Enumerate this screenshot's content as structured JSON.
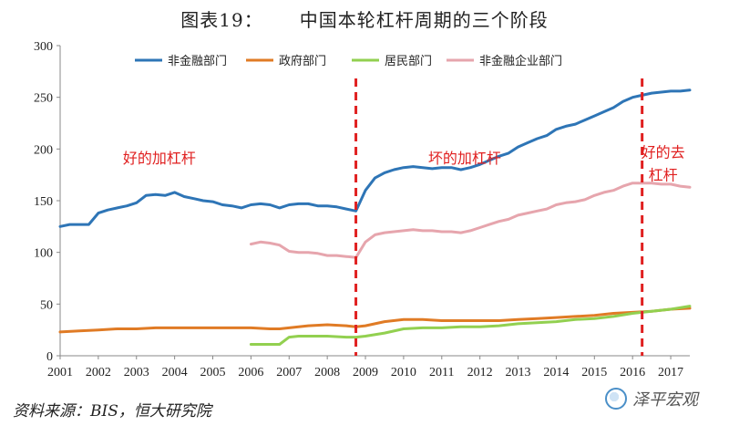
{
  "header": {
    "title_prefix": "图表19：",
    "title_main": "中国本轮杠杆周期的三个阶段"
  },
  "footer": {
    "source": "资料来源：BIS，恒大研究院",
    "watermark": "泽平宏观"
  },
  "chart_data": {
    "type": "line",
    "x_ticks": [
      "2001",
      "2002",
      "2003",
      "2004",
      "2005",
      "2006",
      "2007",
      "2008",
      "2009",
      "2010",
      "2011",
      "2012",
      "2013",
      "2014",
      "2015",
      "2016",
      "2017"
    ],
    "xlim": [
      2001,
      2017.5
    ],
    "ylim": [
      0,
      300
    ],
    "y_ticks": [
      "0",
      "50",
      "100",
      "150",
      "200",
      "250",
      "300"
    ],
    "legend_position": "top",
    "series": [
      {
        "name": "非金融部门",
        "color": "#2e75b6",
        "x": [
          2001.0,
          2001.25,
          2001.5,
          2001.75,
          2002.0,
          2002.25,
          2002.5,
          2002.75,
          2003.0,
          2003.25,
          2003.5,
          2003.75,
          2004.0,
          2004.25,
          2004.5,
          2004.75,
          2005.0,
          2005.25,
          2005.5,
          2005.75,
          2006.0,
          2006.25,
          2006.5,
          2006.75,
          2007.0,
          2007.25,
          2007.5,
          2007.75,
          2008.0,
          2008.25,
          2008.5,
          2008.75,
          2009.0,
          2009.25,
          2009.5,
          2009.75,
          2010.0,
          2010.25,
          2010.5,
          2010.75,
          2011.0,
          2011.25,
          2011.5,
          2011.75,
          2012.0,
          2012.25,
          2012.5,
          2012.75,
          2013.0,
          2013.25,
          2013.5,
          2013.75,
          2014.0,
          2014.25,
          2014.5,
          2014.75,
          2015.0,
          2015.25,
          2015.5,
          2015.75,
          2016.0,
          2016.25,
          2016.5,
          2016.75,
          2017.0,
          2017.25,
          2017.5
        ],
        "y": [
          125,
          127,
          127,
          127,
          138,
          141,
          143,
          145,
          148,
          155,
          156,
          155,
          158,
          154,
          152,
          150,
          149,
          146,
          145,
          143,
          146,
          147,
          146,
          143,
          146,
          147,
          147,
          145,
          145,
          144,
          142,
          140,
          160,
          172,
          177,
          180,
          182,
          183,
          182,
          181,
          182,
          182,
          180,
          182,
          185,
          189,
          193,
          196,
          202,
          206,
          210,
          213,
          219,
          222,
          224,
          228,
          232,
          236,
          240,
          246,
          250,
          252,
          254,
          255,
          256,
          256,
          257
        ]
      },
      {
        "name": "政府部门",
        "color": "#e07b25",
        "x": [
          2001.0,
          2001.5,
          2002.0,
          2002.5,
          2003.0,
          2003.5,
          2004.0,
          2004.5,
          2005.0,
          2005.5,
          2006.0,
          2006.5,
          2006.75,
          2007.0,
          2007.5,
          2008.0,
          2008.5,
          2008.75,
          2009.0,
          2009.5,
          2010.0,
          2010.5,
          2011.0,
          2011.5,
          2012.0,
          2012.5,
          2013.0,
          2013.5,
          2014.0,
          2014.5,
          2015.0,
          2015.5,
          2016.0,
          2016.5,
          2017.0,
          2017.5
        ],
        "y": [
          23,
          24,
          25,
          26,
          26,
          27,
          27,
          27,
          27,
          27,
          27,
          26,
          26,
          27,
          29,
          30,
          29,
          28,
          29,
          33,
          35,
          35,
          34,
          34,
          34,
          34,
          35,
          36,
          37,
          38,
          39,
          41,
          42,
          43,
          45,
          46
        ]
      },
      {
        "name": "居民部门",
        "color": "#92d050",
        "x": [
          2006.0,
          2006.25,
          2006.5,
          2006.75,
          2007.0,
          2007.25,
          2007.5,
          2008.0,
          2008.5,
          2008.75,
          2009.0,
          2009.5,
          2010.0,
          2010.5,
          2011.0,
          2011.5,
          2012.0,
          2012.5,
          2013.0,
          2013.5,
          2014.0,
          2014.5,
          2015.0,
          2015.5,
          2016.0,
          2016.5,
          2017.0,
          2017.5
        ],
        "y": [
          11,
          11,
          11,
          11,
          18,
          19,
          19,
          19,
          18,
          18,
          19,
          22,
          26,
          27,
          27,
          28,
          28,
          29,
          31,
          32,
          33,
          35,
          36,
          38,
          41,
          43,
          45,
          48
        ]
      },
      {
        "name": "非金融企业部门",
        "color": "#e6a5ad",
        "x": [
          2006.0,
          2006.25,
          2006.5,
          2006.75,
          2007.0,
          2007.25,
          2007.5,
          2007.75,
          2008.0,
          2008.25,
          2008.5,
          2008.75,
          2009.0,
          2009.25,
          2009.5,
          2009.75,
          2010.0,
          2010.25,
          2010.5,
          2010.75,
          2011.0,
          2011.25,
          2011.5,
          2011.75,
          2012.0,
          2012.25,
          2012.5,
          2012.75,
          2013.0,
          2013.25,
          2013.5,
          2013.75,
          2014.0,
          2014.25,
          2014.5,
          2014.75,
          2015.0,
          2015.25,
          2015.5,
          2015.75,
          2016.0,
          2016.25,
          2016.5,
          2016.75,
          2017.0,
          2017.25,
          2017.5
        ],
        "y": [
          108,
          110,
          109,
          107,
          101,
          100,
          100,
          99,
          97,
          97,
          96,
          95,
          110,
          117,
          119,
          120,
          121,
          122,
          121,
          121,
          120,
          120,
          119,
          121,
          124,
          127,
          130,
          132,
          136,
          138,
          140,
          142,
          146,
          148,
          149,
          151,
          155,
          158,
          160,
          164,
          167,
          167,
          167,
          166,
          166,
          164,
          163
        ]
      }
    ],
    "annotations": [
      {
        "text": "好的加杠杆",
        "x": 2003.6,
        "y": 186
      },
      {
        "text": "坏的加杠杆",
        "x": 2011.6,
        "y": 186
      },
      {
        "text": "好的去",
        "x": 2016.8,
        "y": 192
      },
      {
        "text": "杠杆",
        "x": 2016.8,
        "y": 170
      }
    ],
    "vlines": [
      {
        "x": 2008.75,
        "color": "#e02020"
      },
      {
        "x": 2016.25,
        "color": "#e02020"
      }
    ]
  }
}
